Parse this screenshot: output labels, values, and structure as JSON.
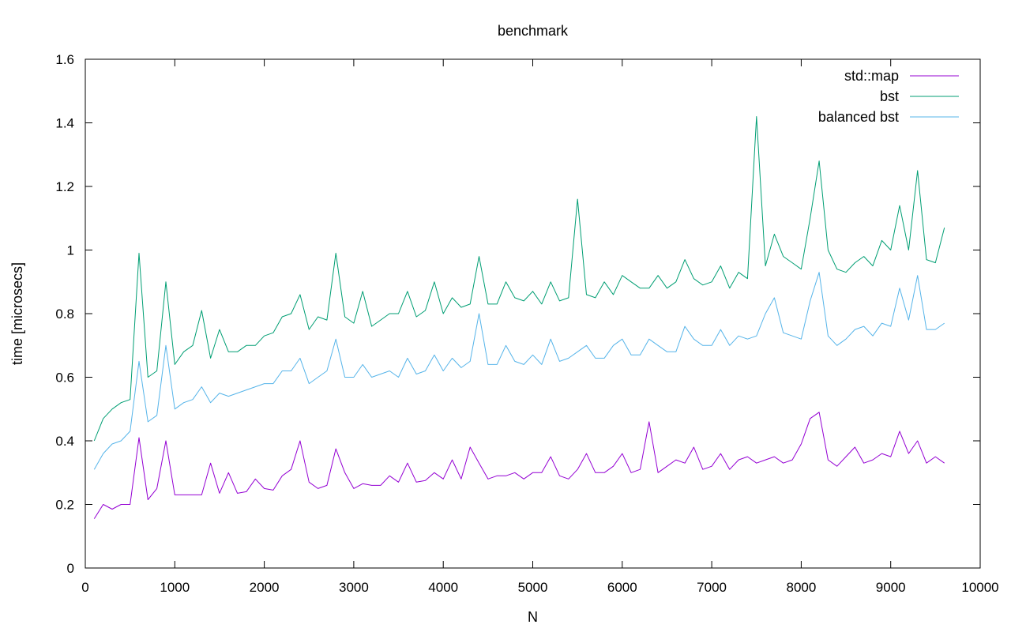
{
  "chart_data": {
    "type": "line",
    "title": "benchmark",
    "xlabel": "N",
    "ylabel": "time [microsecs]",
    "xlim": [
      0,
      10000
    ],
    "ylim": [
      0,
      1.6
    ],
    "xticks": [
      0,
      1000,
      2000,
      3000,
      4000,
      5000,
      6000,
      7000,
      8000,
      9000,
      10000
    ],
    "yticks": [
      0,
      0.2,
      0.4,
      0.6,
      0.8,
      1,
      1.2,
      1.4,
      1.6
    ],
    "xtick_labels": [
      "0",
      "1000",
      "2000",
      "3000",
      "4000",
      "5000",
      "6000",
      "7000",
      "8000",
      "9000",
      "10000"
    ],
    "ytick_labels": [
      "0",
      "0.2",
      "0.4",
      "0.6",
      "0.8",
      "1",
      "1.2",
      "1.4",
      "1.6"
    ],
    "grid": false,
    "legend_position": "top-right",
    "x": [
      100,
      200,
      300,
      400,
      500,
      600,
      700,
      800,
      900,
      1000,
      1100,
      1200,
      1300,
      1400,
      1500,
      1600,
      1700,
      1800,
      1900,
      2000,
      2100,
      2200,
      2300,
      2400,
      2500,
      2600,
      2700,
      2800,
      2900,
      3000,
      3100,
      3200,
      3300,
      3400,
      3500,
      3600,
      3700,
      3800,
      3900,
      4000,
      4100,
      4200,
      4300,
      4400,
      4500,
      4600,
      4700,
      4800,
      4900,
      5000,
      5100,
      5200,
      5300,
      5400,
      5500,
      5600,
      5700,
      5800,
      5900,
      6000,
      6100,
      6200,
      6300,
      6400,
      6500,
      6600,
      6700,
      6800,
      6900,
      7000,
      7100,
      7200,
      7300,
      7400,
      7500,
      7600,
      7700,
      7800,
      7900,
      8000,
      8100,
      8200,
      8300,
      8400,
      8500,
      8600,
      8700,
      8800,
      8900,
      9000,
      9100,
      9200,
      9300,
      9400,
      9500,
      9600
    ],
    "series": [
      {
        "name": "std::map",
        "color": "#9400d3",
        "values": [
          0.155,
          0.2,
          0.185,
          0.2,
          0.2,
          0.41,
          0.215,
          0.25,
          0.4,
          0.23,
          0.23,
          0.23,
          0.23,
          0.33,
          0.235,
          0.3,
          0.235,
          0.24,
          0.28,
          0.25,
          0.245,
          0.29,
          0.31,
          0.4,
          0.27,
          0.25,
          0.26,
          0.375,
          0.3,
          0.25,
          0.265,
          0.26,
          0.26,
          0.29,
          0.27,
          0.33,
          0.27,
          0.275,
          0.3,
          0.28,
          0.34,
          0.28,
          0.38,
          0.33,
          0.28,
          0.29,
          0.29,
          0.3,
          0.28,
          0.3,
          0.3,
          0.35,
          0.29,
          0.28,
          0.31,
          0.36,
          0.3,
          0.3,
          0.32,
          0.36,
          0.3,
          0.31,
          0.46,
          0.3,
          0.32,
          0.34,
          0.33,
          0.38,
          0.31,
          0.32,
          0.36,
          0.31,
          0.34,
          0.35,
          0.33,
          0.34,
          0.35,
          0.33,
          0.34,
          0.39,
          0.47,
          0.49,
          0.34,
          0.32,
          0.35,
          0.38,
          0.33,
          0.34,
          0.36,
          0.35,
          0.43,
          0.36,
          0.4,
          0.33,
          0.35,
          0.33
        ]
      },
      {
        "name": "bst",
        "color": "#009e73",
        "values": [
          0.4,
          0.47,
          0.5,
          0.52,
          0.53,
          0.99,
          0.6,
          0.62,
          0.9,
          0.64,
          0.68,
          0.7,
          0.81,
          0.66,
          0.75,
          0.68,
          0.68,
          0.7,
          0.7,
          0.73,
          0.74,
          0.79,
          0.8,
          0.86,
          0.75,
          0.79,
          0.78,
          0.99,
          0.79,
          0.77,
          0.87,
          0.76,
          0.78,
          0.8,
          0.8,
          0.87,
          0.79,
          0.81,
          0.9,
          0.8,
          0.85,
          0.82,
          0.83,
          0.98,
          0.83,
          0.83,
          0.9,
          0.85,
          0.84,
          0.87,
          0.83,
          0.9,
          0.84,
          0.85,
          1.16,
          0.86,
          0.85,
          0.9,
          0.86,
          0.92,
          0.9,
          0.88,
          0.88,
          0.92,
          0.88,
          0.9,
          0.97,
          0.91,
          0.89,
          0.9,
          0.95,
          0.88,
          0.93,
          0.91,
          1.42,
          0.95,
          1.05,
          0.98,
          0.96,
          0.94,
          1.1,
          1.28,
          1.0,
          0.94,
          0.93,
          0.96,
          0.98,
          0.95,
          1.03,
          1.0,
          1.14,
          1.0,
          1.25,
          0.97,
          0.96,
          1.07
        ]
      },
      {
        "name": "balanced bst",
        "color": "#56b4e9",
        "values": [
          0.31,
          0.36,
          0.39,
          0.4,
          0.43,
          0.65,
          0.46,
          0.48,
          0.7,
          0.5,
          0.52,
          0.53,
          0.57,
          0.52,
          0.55,
          0.54,
          0.55,
          0.56,
          0.57,
          0.58,
          0.58,
          0.62,
          0.62,
          0.66,
          0.58,
          0.6,
          0.62,
          0.72,
          0.6,
          0.6,
          0.64,
          0.6,
          0.61,
          0.62,
          0.6,
          0.66,
          0.61,
          0.62,
          0.67,
          0.62,
          0.66,
          0.63,
          0.65,
          0.8,
          0.64,
          0.64,
          0.7,
          0.65,
          0.64,
          0.67,
          0.64,
          0.72,
          0.65,
          0.66,
          0.68,
          0.7,
          0.66,
          0.66,
          0.7,
          0.72,
          0.67,
          0.67,
          0.72,
          0.7,
          0.68,
          0.68,
          0.76,
          0.72,
          0.7,
          0.7,
          0.75,
          0.7,
          0.73,
          0.72,
          0.73,
          0.8,
          0.85,
          0.74,
          0.73,
          0.72,
          0.84,
          0.93,
          0.73,
          0.7,
          0.72,
          0.75,
          0.76,
          0.73,
          0.77,
          0.76,
          0.88,
          0.78,
          0.92,
          0.75,
          0.75,
          0.77
        ]
      }
    ]
  }
}
